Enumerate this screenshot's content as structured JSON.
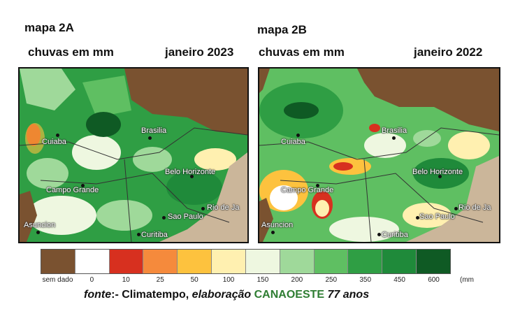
{
  "maps": [
    {
      "id": "2A",
      "title": "mapa 2A",
      "subtitle": "chuvas em mm",
      "period": "janeiro 2023",
      "cities": [
        "Cuiaba",
        "Brasilia",
        "Belo Horizonte",
        "Campo Grande",
        "Asuncion",
        "Sao Paulo",
        "Rio de Ja",
        "Curitiba"
      ]
    },
    {
      "id": "2B",
      "title": "mapa 2B",
      "subtitle": "chuvas em mm",
      "period": "janeiro 2022",
      "cities": [
        "Cuiaba",
        "Brasilia",
        "Belo Horizonte",
        "Campo Grande",
        "Asuncion",
        "Sao Paulo",
        "Rio de Ja",
        "Curitiba"
      ]
    }
  ],
  "legend": {
    "classes": [
      {
        "label": "sem dado",
        "color": "#7a5230"
      },
      {
        "label": "0",
        "color": "#ffffff"
      },
      {
        "label": "10",
        "color": "#d7301f"
      },
      {
        "label": "25",
        "color": "#f58a3c"
      },
      {
        "label": "50",
        "color": "#fdc23e"
      },
      {
        "label": "100",
        "color": "#fff0b0"
      },
      {
        "label": "150",
        "color": "#eef7e0"
      },
      {
        "label": "200",
        "color": "#9fd99a"
      },
      {
        "label": "250",
        "color": "#5fbf62"
      },
      {
        "label": "350",
        "color": "#2f9e44"
      },
      {
        "label": "450",
        "color": "#1f8a3a"
      },
      {
        "label": "600",
        "color": "#0f5a24"
      }
    ],
    "unit": "(mm"
  },
  "source": {
    "prefix": "fonte",
    "sep": ":- Climatempo, ",
    "mid": "elaboração ",
    "org": "CANAOESTE",
    "suffix": " 77 anos"
  }
}
